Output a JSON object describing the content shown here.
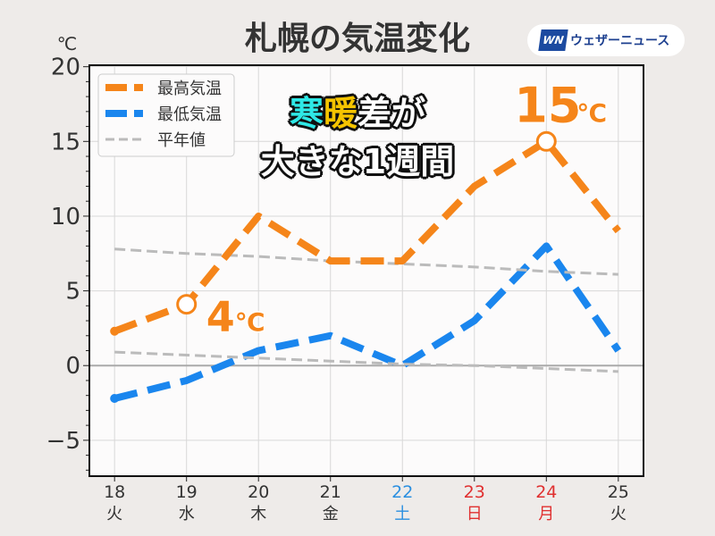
{
  "header": {
    "title": "札幌の気温変化",
    "logo_mark": "WN",
    "logo_text": "ウェザーニュース"
  },
  "headline": {
    "part1": "寒",
    "part2": "暖",
    "part3": "差が",
    "line2": "大きな1週間",
    "colors": {
      "cold": "#2ee8e6",
      "warm": "#f5c400"
    }
  },
  "chart_data": {
    "type": "line",
    "title": "札幌の気温変化",
    "ylabel": "℃",
    "ylim": [
      -7.4,
      20.1
    ],
    "yticks": [
      -5,
      0,
      5,
      10,
      15,
      20
    ],
    "ytick_labels": [
      "−5",
      "0",
      "5",
      "10",
      "15",
      "20"
    ],
    "x": [
      18,
      19,
      20,
      21,
      22,
      23,
      24,
      25
    ],
    "xtick_days": [
      "18",
      "19",
      "20",
      "21",
      "22",
      "23",
      "24",
      "25"
    ],
    "xtick_weekdays": [
      "火",
      "水",
      "木",
      "金",
      "土",
      "日",
      "月",
      "火"
    ],
    "xtick_colors": [
      "#333333",
      "#333333",
      "#333333",
      "#333333",
      "#2a8fe0",
      "#e03030",
      "#e03030",
      "#333333"
    ],
    "grid": true,
    "legend_position": "top-left",
    "series": [
      {
        "name": "最高気温",
        "color": "#f5851a",
        "values": [
          2.3,
          4.1,
          10,
          7,
          7,
          12,
          15,
          9
        ]
      },
      {
        "name": "最低気温",
        "color": "#1a86ee",
        "values": [
          -2.2,
          -1,
          1,
          2,
          0,
          3,
          8,
          1
        ]
      },
      {
        "name": "平年値",
        "color": "#bbbbbb",
        "values": [
          7.8,
          7.5,
          7.3,
          7.0,
          6.8,
          6.6,
          6.3,
          6.1
        ]
      },
      {
        "name": "平年値",
        "color": "#bbbbbb",
        "values": [
          0.9,
          0.7,
          0.5,
          0.3,
          0.1,
          0.0,
          -0.2,
          -0.4
        ]
      }
    ],
    "annotations": [
      {
        "x": 19,
        "y": 4.1,
        "value": "4",
        "unit": "℃"
      },
      {
        "x": 24,
        "y": 15,
        "value": "15",
        "unit": "℃"
      }
    ]
  }
}
